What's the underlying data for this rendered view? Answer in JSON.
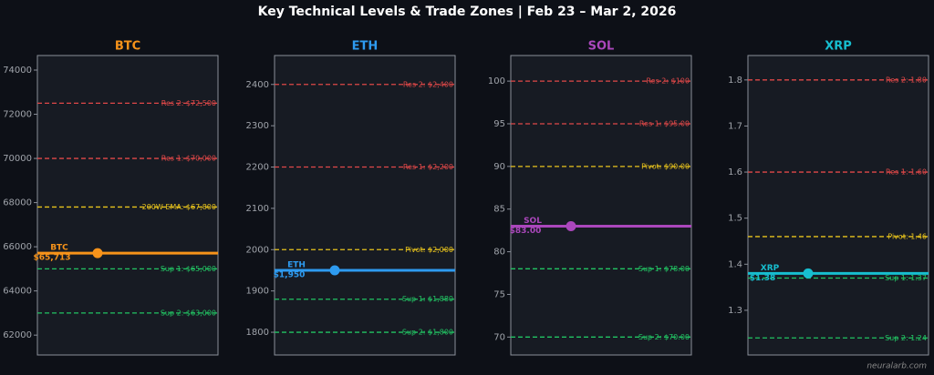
{
  "title": "Key Technical Levels & Trade Zones  |  Feb 23 – Mar 2, 2026",
  "credit": "neuralarb.com",
  "chart_data": [
    {
      "type": "levels",
      "title": "BTC",
      "color": "#f7931a",
      "ylim": [
        61100,
        74660
      ],
      "yticks": [
        62000,
        64000,
        66000,
        68000,
        70000,
        72000,
        74000
      ],
      "levels": [
        {
          "label": "Res 2: $72,500",
          "value": 72500,
          "color": "#e04848"
        },
        {
          "label": "Res 1: $70,000",
          "value": 70000,
          "color": "#e04848"
        },
        {
          "label": "200W EMA: $67,800",
          "value": 67800,
          "color": "#e8c31c"
        },
        {
          "label": "Sup 1: $65,000",
          "value": 65000,
          "color": "#22c463"
        },
        {
          "label": "Sup 2: $63,000",
          "value": 63000,
          "color": "#22c463"
        }
      ],
      "price": {
        "name": "BTC",
        "value": 65713,
        "value_label": "$65,713"
      }
    },
    {
      "type": "levels",
      "title": "ETH",
      "color": "#2e9bf0",
      "ylim": [
        1745,
        2470
      ],
      "yticks": [
        1800,
        1900,
        2000,
        2100,
        2200,
        2300,
        2400
      ],
      "levels": [
        {
          "label": "Res 2: $2,400",
          "value": 2400,
          "color": "#e04848"
        },
        {
          "label": "Res 1: $2,200",
          "value": 2200,
          "color": "#e04848"
        },
        {
          "label": "Pivot: $2,000",
          "value": 2000,
          "color": "#e8c31c"
        },
        {
          "label": "Sup 1: $1,880",
          "value": 1880,
          "color": "#22c463"
        },
        {
          "label": "Sup 2: $1,800",
          "value": 1800,
          "color": "#22c463"
        }
      ],
      "price": {
        "name": "ETH",
        "value": 1950,
        "value_label": "$1,950"
      }
    },
    {
      "type": "levels",
      "title": "SOL",
      "color": "#ab47bc",
      "ylim": [
        67.9,
        103
      ],
      "yticks": [
        70,
        75,
        80,
        85,
        90,
        95,
        100
      ],
      "levels": [
        {
          "label": "Res 2: $100",
          "value": 100,
          "color": "#e04848"
        },
        {
          "label": "Res 1: $95.00",
          "value": 95,
          "color": "#e04848"
        },
        {
          "label": "Pivot: $90.00",
          "value": 90,
          "color": "#e8c31c"
        },
        {
          "label": "Sup 1: $78.00",
          "value": 78,
          "color": "#22c463"
        },
        {
          "label": "Sup 2: $70.00",
          "value": 70,
          "color": "#22c463"
        }
      ],
      "price": {
        "name": "SOL",
        "value": 83,
        "value_label": "$83.00"
      }
    },
    {
      "type": "levels",
      "title": "XRP",
      "color": "#17becf",
      "ylim": [
        1.203,
        1.853
      ],
      "yticks": [
        1.3,
        1.4,
        1.5,
        1.6,
        1.7,
        1.8
      ],
      "levels": [
        {
          "label": "Res 2: 1.80",
          "value": 1.8,
          "color": "#e04848"
        },
        {
          "label": "Res 1: 1.60",
          "value": 1.6,
          "color": "#e04848"
        },
        {
          "label": "Pivot: 1.46",
          "value": 1.46,
          "color": "#e8c31c"
        },
        {
          "label": "Sup 1: 1.37",
          "value": 1.37,
          "color": "#22c463"
        },
        {
          "label": "Sup 2: 1.24",
          "value": 1.24,
          "color": "#22c463"
        }
      ],
      "price": {
        "name": "XRP",
        "value": 1.38,
        "value_label": "$1.38"
      }
    }
  ]
}
